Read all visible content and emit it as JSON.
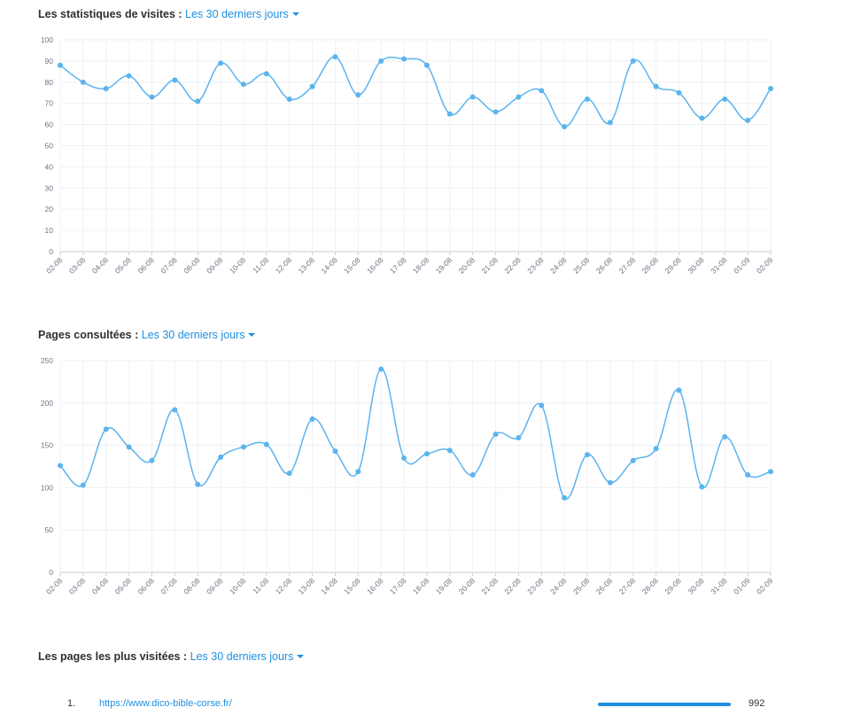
{
  "visits": {
    "title": "Les statistiques de visites : ",
    "period": "Les 30 derniers jours"
  },
  "pages": {
    "title": "Pages consultées : ",
    "period": "Les 30 derniers jours"
  },
  "top_pages": {
    "title": "Les pages les plus visitées : ",
    "period": "Les 30 derniers jours",
    "items": [
      {
        "rank": "1.",
        "url": "https://www.dico-bible-corse.fr/",
        "count": "992",
        "share": 1.0
      }
    ]
  },
  "colors": {
    "accent": "#1d8fe1",
    "line": "#5bb4ee"
  },
  "chart_data": [
    {
      "type": "line",
      "title": "",
      "xlabel": "",
      "ylabel": "",
      "ylim": [
        0,
        100
      ],
      "yticks": [
        0,
        10,
        20,
        30,
        40,
        50,
        60,
        70,
        80,
        90,
        100
      ],
      "grid": true,
      "x": [
        "02-08",
        "03-08",
        "04-08",
        "05-08",
        "06-08",
        "07-08",
        "08-08",
        "09-08",
        "10-08",
        "11-08",
        "12-08",
        "13-08",
        "14-08",
        "15-08",
        "16-08",
        "17-08",
        "18-08",
        "19-08",
        "20-08",
        "21-08",
        "22-08",
        "23-08",
        "24-08",
        "25-08",
        "26-08",
        "27-08",
        "28-08",
        "29-08",
        "30-08",
        "31-08",
        "01-09",
        "02-09"
      ],
      "values": [
        88,
        80,
        77,
        83,
        73,
        81,
        71,
        89,
        79,
        84,
        72,
        78,
        92,
        74,
        90,
        91,
        88,
        65,
        73,
        66,
        73,
        76,
        59,
        72,
        61,
        90,
        78,
        75,
        63,
        72,
        62,
        77
      ]
    },
    {
      "type": "line",
      "title": "",
      "xlabel": "",
      "ylabel": "",
      "ylim": [
        0,
        250
      ],
      "yticks": [
        0,
        50,
        100,
        150,
        200,
        250
      ],
      "grid": true,
      "x": [
        "02-08",
        "03-08",
        "04-08",
        "05-08",
        "06-08",
        "07-08",
        "08-08",
        "09-08",
        "10-08",
        "11-08",
        "12-08",
        "13-08",
        "14-08",
        "15-08",
        "16-08",
        "17-08",
        "18-08",
        "19-08",
        "20-08",
        "21-08",
        "22-08",
        "23-08",
        "24-08",
        "25-08",
        "26-08",
        "27-08",
        "28-08",
        "29-08",
        "30-08",
        "31-08",
        "01-09",
        "02-09"
      ],
      "values": [
        126,
        103,
        169,
        148,
        132,
        192,
        104,
        136,
        148,
        151,
        117,
        181,
        143,
        119,
        240,
        135,
        140,
        144,
        115,
        163,
        159,
        197,
        88,
        139,
        106,
        132,
        146,
        215,
        101,
        160,
        115,
        119
      ]
    }
  ]
}
